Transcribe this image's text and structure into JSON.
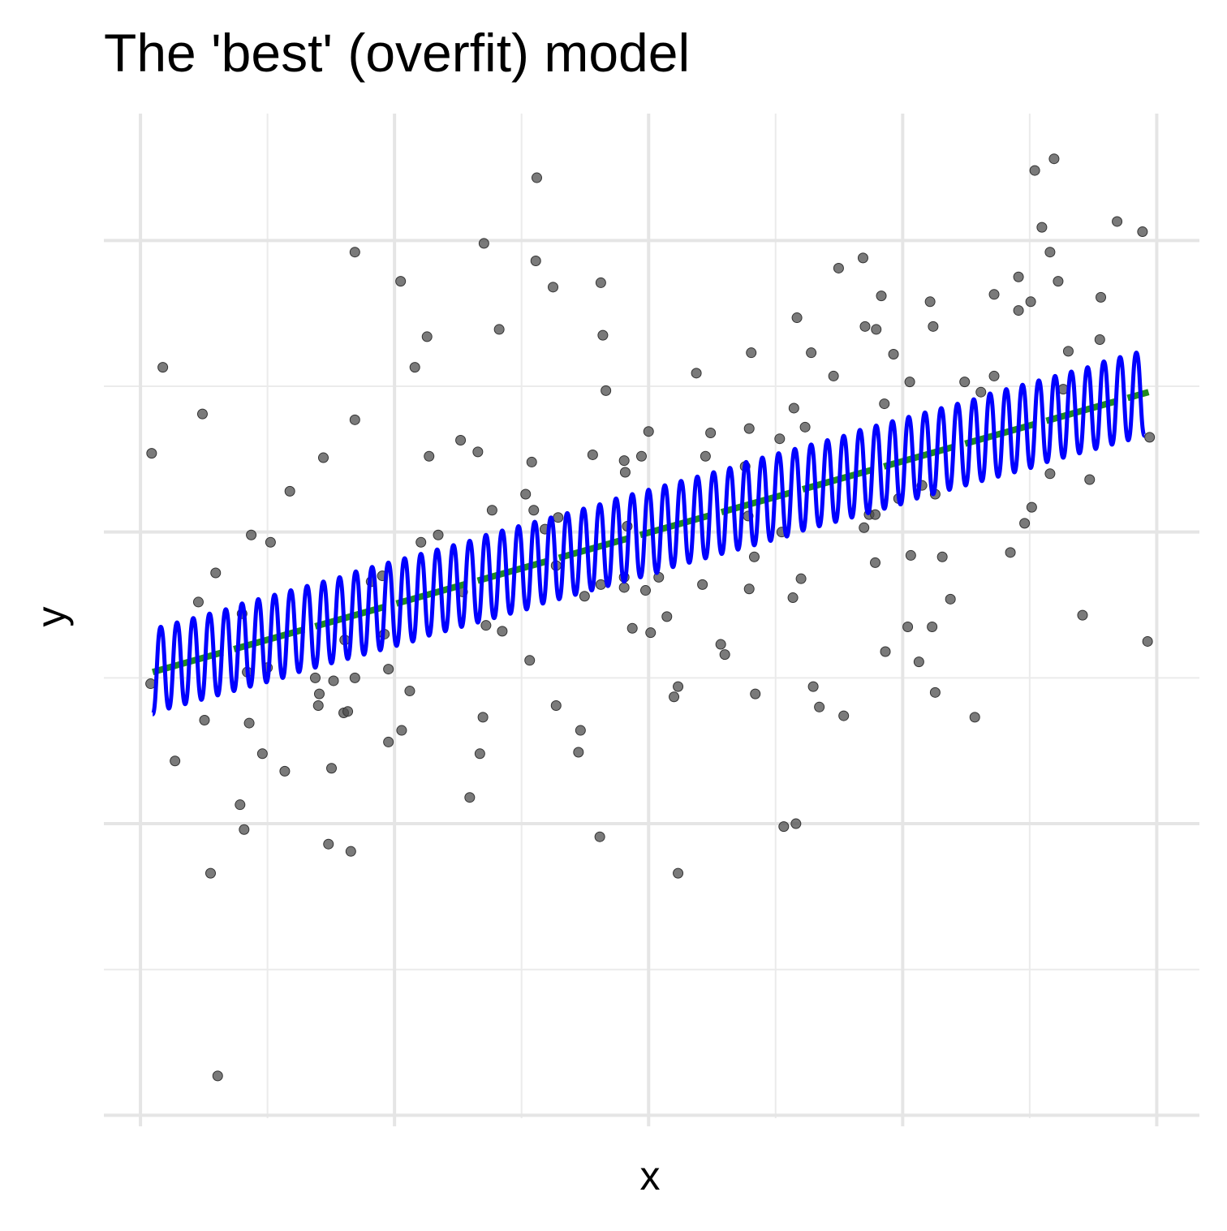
{
  "chart_data": {
    "type": "scatter",
    "title": "The 'best' (overfit) model",
    "x_label": "x",
    "y_label": "y",
    "xlim": [
      -3.6,
      104.2
    ],
    "ylim": [
      -4.02,
      2.87
    ],
    "xticks": [
      0,
      25,
      50,
      75,
      100
    ],
    "xminor": [
      12.5,
      37.5,
      62.5,
      87.5
    ],
    "yticks": [
      -4,
      -2,
      0,
      2
    ],
    "yminor": [
      -3,
      -1,
      1
    ],
    "grid": true,
    "series": [
      {
        "type": "scatter",
        "color": "#4d4d4d",
        "x": [
          1.1,
          2.2,
          1.0,
          3.4,
          5.7,
          6.1,
          6.3,
          6.9,
          7.4,
          7.6,
          9.8,
          10.2,
          10.0,
          10.7,
          10.9,
          10.5,
          12.0,
          12.5,
          12.8,
          14.2,
          14.7,
          17.2,
          17.5,
          17.6,
          18.0,
          18.5,
          18.8,
          19.0,
          20.0,
          20.4,
          20.7,
          21.1,
          21.1,
          21.1,
          20.1,
          22.7,
          23.8,
          24.0,
          24.4,
          24.4,
          25.6,
          25.7,
          26.5,
          27.0,
          27.6,
          28.2,
          28.4,
          29.3,
          31.5,
          31.7,
          32.4,
          33.2,
          33.4,
          33.7,
          33.8,
          34.0,
          34.6,
          35.3,
          35.6,
          37.9,
          38.3,
          38.5,
          38.7,
          38.9,
          39.0,
          39.8,
          40.6,
          40.9,
          41.1,
          40.9,
          43.1,
          43.3,
          43.7,
          44.5,
          45.2,
          45.3,
          45.5,
          45.8,
          45.3,
          47.6,
          47.7,
          47.9,
          47.6,
          47.6,
          48.4,
          49.3,
          50.0,
          49.7,
          50.2,
          51.0,
          51.8,
          52.5,
          52.9,
          52.9,
          54.7,
          55.3,
          55.6,
          56.1,
          57.1,
          57.5,
          59.5,
          59.9,
          60.1,
          59.8,
          60.4,
          59.9,
          60.5,
          62.9,
          63.1,
          63.3,
          64.3,
          64.5,
          64.2,
          64.6,
          65.0,
          65.4,
          66.0,
          66.2,
          66.8,
          68.2,
          68.7,
          69.2,
          71.1,
          71.2,
          71.3,
          71.7,
          72.3,
          72.3,
          72.4,
          72.9,
          73.2,
          73.3,
          74.1,
          74.6,
          75.5,
          75.7,
          75.8,
          76.6,
          76.9,
          77.7,
          78.0,
          78.2,
          77.9,
          78.2,
          78.9,
          79.7,
          81.1,
          82.1,
          82.7,
          84.0,
          84.0,
          85.6,
          86.4,
          86.4,
          87.0,
          87.7,
          87.6,
          88.0,
          88.7,
          89.5,
          89.9,
          90.3,
          89.5,
          90.8,
          91.3,
          92.7,
          93.4,
          94.4,
          94.5,
          96.1,
          98.6,
          99.1,
          99.3
        ],
        "values": [
          0.54,
          1.13,
          -1.04,
          -1.57,
          -0.48,
          0.81,
          -1.29,
          -2.34,
          -0.28,
          -3.73,
          -1.87,
          -2.04,
          -0.56,
          -1.31,
          -0.02,
          -0.96,
          -1.52,
          -0.93,
          -0.07,
          -1.64,
          0.28,
          -1.0,
          -1.19,
          -1.11,
          0.51,
          -2.14,
          -1.62,
          -1.02,
          -1.24,
          -1.23,
          -2.19,
          0.77,
          -1.0,
          1.92,
          -0.74,
          -0.34,
          -0.3,
          -0.7,
          -0.94,
          -1.44,
          1.72,
          -1.36,
          -1.09,
          1.13,
          -0.07,
          1.34,
          0.52,
          -0.02,
          0.63,
          -0.41,
          -1.82,
          0.55,
          -1.52,
          -1.27,
          1.98,
          -0.64,
          0.15,
          1.39,
          -0.68,
          0.26,
          -0.88,
          0.48,
          0.15,
          1.86,
          2.43,
          0.02,
          1.68,
          -1.19,
          0.1,
          -0.23,
          -1.51,
          -1.36,
          -0.44,
          0.53,
          -2.09,
          1.71,
          1.35,
          0.97,
          -0.36,
          0.49,
          0.41,
          0.04,
          -0.38,
          -0.31,
          -0.66,
          0.52,
          0.69,
          -0.4,
          -0.69,
          -0.31,
          -0.58,
          -1.13,
          -1.06,
          -2.34,
          1.09,
          -0.36,
          0.52,
          0.68,
          -0.77,
          -0.84,
          0.45,
          0.71,
          1.23,
          0.11,
          -0.17,
          -0.39,
          -1.11,
          0.64,
          0.0,
          -2.02,
          0.85,
          -2.0,
          -0.45,
          1.47,
          -0.32,
          0.72,
          1.23,
          -1.06,
          -1.2,
          1.07,
          1.81,
          -1.26,
          1.88,
          0.03,
          1.41,
          0.12,
          0.12,
          -0.21,
          1.39,
          1.62,
          0.88,
          -0.82,
          1.22,
          0.23,
          -0.65,
          1.03,
          -0.16,
          -0.89,
          0.32,
          1.58,
          1.41,
          0.26,
          -0.65,
          -1.1,
          -0.17,
          -0.46,
          1.03,
          -1.27,
          0.96,
          1.63,
          1.07,
          -0.14,
          1.75,
          1.52,
          0.06,
          0.17,
          1.58,
          2.48,
          2.09,
          1.92,
          2.56,
          1.72,
          0.4,
          0.98,
          1.24,
          -0.57,
          0.36,
          1.32,
          1.61,
          2.13,
          2.06,
          -0.75,
          0.65
        ]
      },
      {
        "type": "line",
        "color": "#228b22",
        "dash": true,
        "x": [
          1.2,
          99.2
        ],
        "values": [
          -0.96,
          0.96
        ]
      },
      {
        "type": "line",
        "color": "#0000ff",
        "x": [
          1.2,
          2.0,
          2.8,
          3.6,
          4.4,
          5.2,
          6.0,
          6.8,
          7.6,
          8.4,
          9.2,
          10.0,
          10.8,
          11.6,
          12.4,
          13.2,
          14.0,
          14.8,
          15.6,
          16.4,
          17.2,
          18.0,
          18.8,
          19.6,
          20.4,
          21.2,
          22.0,
          22.8,
          23.6,
          24.4,
          25.2,
          26.0,
          26.8,
          27.6,
          28.4,
          29.2,
          30.0,
          30.8,
          31.6,
          32.4,
          33.2,
          34.0,
          34.8,
          35.6,
          36.4,
          37.2,
          38.0,
          38.8,
          39.6,
          40.4,
          41.2,
          42.0,
          42.8,
          43.6,
          44.4,
          45.2,
          46.0,
          46.8,
          47.6,
          48.4,
          49.2,
          50.0,
          50.8,
          51.6,
          52.4,
          53.2,
          54.0,
          54.8,
          55.6,
          56.4,
          57.2,
          58.0,
          58.8,
          59.6,
          60.4,
          61.2,
          62.0,
          62.8,
          63.6,
          64.4,
          65.2,
          66.0,
          66.8,
          67.6,
          68.4,
          69.2,
          70.0,
          70.8,
          71.6,
          72.4,
          73.2,
          74.0,
          74.8,
          75.6,
          76.4,
          77.2,
          78.0,
          78.8,
          79.6,
          80.4,
          81.2,
          82.0,
          82.8,
          83.6,
          84.4,
          85.2,
          86.0,
          86.8,
          87.6,
          88.4,
          89.2,
          90.0,
          90.8,
          91.6,
          92.4,
          93.2,
          94.0,
          94.8,
          95.6,
          96.4,
          97.2,
          98.0,
          98.8
        ],
        "values": [
          -1.25,
          -0.65,
          -1.21,
          -0.62,
          -1.18,
          -0.59,
          -1.15,
          -0.56,
          -1.12,
          -0.53,
          -1.09,
          -0.49,
          -1.06,
          -0.46,
          -1.03,
          -0.43,
          -1.0,
          -0.4,
          -0.96,
          -0.37,
          -0.93,
          -0.34,
          -0.9,
          -0.31,
          -0.87,
          -0.27,
          -0.84,
          -0.24,
          -0.81,
          -0.21,
          -0.78,
          -0.18,
          -0.75,
          -0.15,
          -0.71,
          -0.12,
          -0.68,
          -0.09,
          -0.65,
          -0.06,
          -0.62,
          -0.02,
          -0.59,
          0.01,
          -0.56,
          0.04,
          -0.53,
          0.07,
          -0.49,
          0.1,
          -0.46,
          0.13,
          -0.43,
          0.16,
          -0.4,
          0.19,
          -0.37,
          0.23,
          -0.34,
          0.26,
          -0.31,
          0.29,
          -0.28,
          0.32,
          -0.24,
          0.35,
          -0.21,
          0.38,
          -0.18,
          0.41,
          -0.15,
          0.44,
          -0.12,
          0.48,
          -0.09,
          0.51,
          -0.06,
          0.54,
          -0.03,
          0.57,
          0.01,
          0.6,
          0.04,
          0.63,
          0.07,
          0.66,
          0.1,
          0.7,
          0.13,
          0.73,
          0.16,
          0.76,
          0.19,
          0.79,
          0.23,
          0.82,
          0.26,
          0.85,
          0.29,
          0.88,
          0.32,
          0.91,
          0.35,
          0.95,
          0.38,
          0.98,
          0.41,
          1.01,
          0.44,
          1.04,
          0.48,
          1.07,
          0.51,
          1.1,
          0.54,
          1.13,
          0.57,
          1.17,
          0.6,
          1.2,
          0.63,
          1.23,
          0.66
        ]
      }
    ]
  }
}
